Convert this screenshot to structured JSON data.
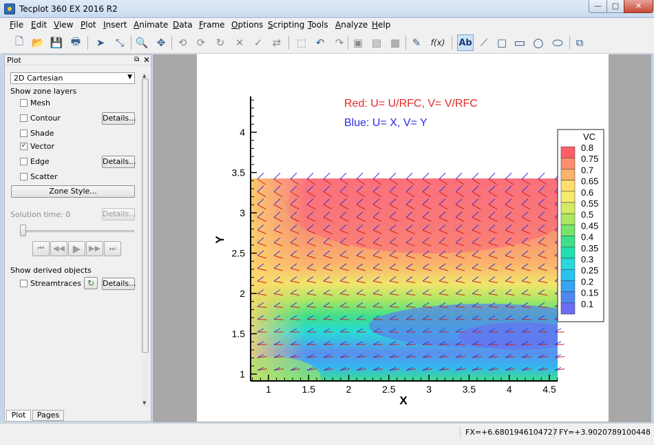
{
  "window": {
    "title": "Tecplot 360 EX 2016 R2",
    "min": "—",
    "max": "□",
    "close": "✕"
  },
  "menu": [
    "File",
    "Edit",
    "View",
    "Plot",
    "Insert",
    "Animate",
    "Data",
    "Frame",
    "Options",
    "Scripting",
    "Tools",
    "Analyze",
    "Help"
  ],
  "toolbar": {
    "icons": [
      "new-file-icon",
      "open-icon",
      "save-icon",
      "print-icon",
      "select-icon",
      "adjust-icon",
      "zoom-icon",
      "translate-icon",
      "rotate-x-icon",
      "rotate-y-icon",
      "rotate-z-icon",
      "spin-x-icon",
      "spin-y-icon",
      "spin-z-icon",
      "probe-icon",
      "pick-icon",
      "undo-icon",
      "redo-icon",
      "slice-icon",
      "iso-surface-icon",
      "streamtrace-icon",
      "contour-tool-icon",
      "formula-icon",
      "text-icon",
      "polyline-icon",
      "square-icon",
      "rectangle-icon",
      "circle-icon",
      "ellipse-icon",
      "frame-icon"
    ],
    "formula_label": "f(x)",
    "text_label": "Ab"
  },
  "sidebar": {
    "title": "Plot",
    "plot_type": "2D Cartesian",
    "show_zone_layers": "Show zone layers",
    "layers": [
      {
        "label": "Mesh",
        "checked": false
      },
      {
        "label": "Contour",
        "checked": false
      },
      {
        "label": "Shade",
        "checked": false
      },
      {
        "label": "Vector",
        "checked": true
      },
      {
        "label": "Edge",
        "checked": false
      },
      {
        "label": "Scatter",
        "checked": false
      }
    ],
    "details": "Details...",
    "zone_style": "Zone Style...",
    "solution_time": "Solution time: 0",
    "show_derived": "Show derived objects",
    "streamtraces": "Streamtraces",
    "tabs": [
      "Plot",
      "Pages"
    ]
  },
  "plot": {
    "annotation_red": "Red: U= U/RFC, V= V/RFC",
    "annotation_blue": "Blue: U= X, V= Y",
    "legend_title": "VC",
    "legend_levels": [
      "0.8",
      "0.75",
      "0.7",
      "0.65",
      "0.6",
      "0.55",
      "0.5",
      "0.45",
      "0.4",
      "0.35",
      "0.3",
      "0.25",
      "0.2",
      "0.15",
      "0.1"
    ],
    "legend_colors": [
      "#fd5f6a",
      "#fd8d6c",
      "#fbb26c",
      "#fdde6d",
      "#f3ea6b",
      "#d4ea65",
      "#a9e763",
      "#79e36d",
      "#3fdf8b",
      "#22dfb1",
      "#27d9da",
      "#2bc2ef",
      "#38a4f4",
      "#4d88ef",
      "#6b6cf0"
    ],
    "xlabel": "X",
    "ylabel": "Y",
    "xticks": [
      "1",
      "1.5",
      "2",
      "2.5",
      "3",
      "3.5",
      "4",
      "4.5"
    ],
    "yticks": [
      "1",
      "1.5",
      "2",
      "2.5",
      "3",
      "3.5",
      "4"
    ]
  },
  "status": {
    "fx": "FX=+6.6801946104727",
    "fy": "FY=+3.9020789100448"
  }
}
